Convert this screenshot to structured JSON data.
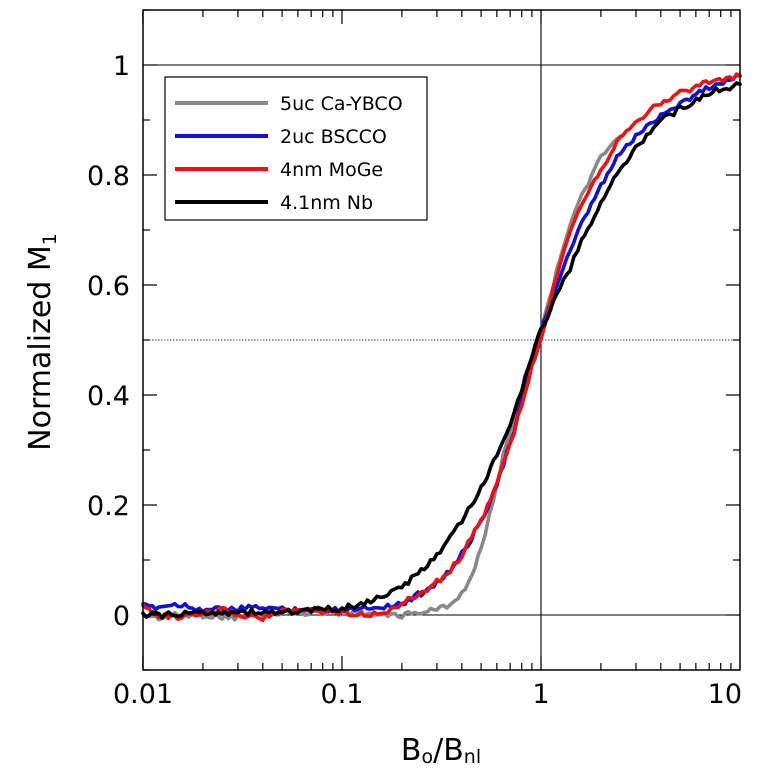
{
  "chart_data": {
    "type": "line",
    "xscale": "log",
    "xlim": [
      0.01,
      10
    ],
    "ylim": [
      -0.1,
      1.1
    ],
    "xticks": [
      {
        "value": 0.01,
        "label": "0.01"
      },
      {
        "value": 0.1,
        "label": "0.1"
      },
      {
        "value": 1,
        "label": "1"
      },
      {
        "value": 10,
        "label": "10"
      }
    ],
    "yticks": [
      {
        "value": 0,
        "label": "0"
      },
      {
        "value": 0.2,
        "label": "0.2"
      },
      {
        "value": 0.4,
        "label": "0.4"
      },
      {
        "value": 0.6,
        "label": "0.6"
      },
      {
        "value": 0.8,
        "label": "0.8"
      },
      {
        "value": 1,
        "label": "1"
      }
    ],
    "xlabel": {
      "main": "B",
      "sub1": "o",
      "mid": "/B",
      "sub2": "nl"
    },
    "ylabel": {
      "main": "Normalized M",
      "sub": "1"
    },
    "reference_lines": [
      {
        "axis": "y",
        "value": 0,
        "style": "solid"
      },
      {
        "axis": "y",
        "value": 1,
        "style": "solid"
      },
      {
        "axis": "y",
        "value": 0.5,
        "style": "dotted"
      },
      {
        "axis": "x",
        "value": 1,
        "style": "solid"
      }
    ],
    "legend_position": "top-left",
    "series": [
      {
        "name": "5uc Ca-YBCO",
        "color": "#888888",
        "points": [
          [
            0.01,
            0.0
          ],
          [
            0.012,
            -0.005
          ],
          [
            0.015,
            0.0
          ],
          [
            0.02,
            0.0
          ],
          [
            0.03,
            -0.005
          ],
          [
            0.05,
            0.005
          ],
          [
            0.07,
            0.005
          ],
          [
            0.1,
            0.01
          ],
          [
            0.15,
            0.0
          ],
          [
            0.2,
            0.0
          ],
          [
            0.25,
            0.005
          ],
          [
            0.3,
            0.01
          ],
          [
            0.35,
            0.02
          ],
          [
            0.4,
            0.04
          ],
          [
            0.45,
            0.07
          ],
          [
            0.5,
            0.12
          ],
          [
            0.55,
            0.18
          ],
          [
            0.6,
            0.24
          ],
          [
            0.7,
            0.34
          ],
          [
            0.8,
            0.41
          ],
          [
            0.9,
            0.47
          ],
          [
            1.0,
            0.52
          ],
          [
            1.1,
            0.57
          ],
          [
            1.2,
            0.63
          ],
          [
            1.4,
            0.71
          ],
          [
            1.6,
            0.76
          ],
          [
            1.8,
            0.8
          ],
          [
            2.0,
            0.83
          ],
          [
            2.2,
            0.85
          ],
          [
            2.5,
            0.87
          ]
        ]
      },
      {
        "name": "2uc BSCCO",
        "color": "#1010dd",
        "points": [
          [
            0.01,
            0.015
          ],
          [
            0.012,
            0.015
          ],
          [
            0.015,
            0.02
          ],
          [
            0.02,
            0.01
          ],
          [
            0.03,
            0.01
          ],
          [
            0.04,
            0.015
          ],
          [
            0.05,
            0.01
          ],
          [
            0.07,
            0.01
          ],
          [
            0.1,
            0.01
          ],
          [
            0.15,
            0.015
          ],
          [
            0.2,
            0.02
          ],
          [
            0.25,
            0.04
          ],
          [
            0.3,
            0.06
          ],
          [
            0.35,
            0.08
          ],
          [
            0.4,
            0.11
          ],
          [
            0.5,
            0.17
          ],
          [
            0.6,
            0.24
          ],
          [
            0.7,
            0.31
          ],
          [
            0.8,
            0.39
          ],
          [
            0.9,
            0.46
          ],
          [
            1.0,
            0.52
          ],
          [
            1.2,
            0.6
          ],
          [
            1.4,
            0.66
          ],
          [
            1.6,
            0.71
          ],
          [
            2.0,
            0.78
          ],
          [
            2.5,
            0.84
          ],
          [
            3.0,
            0.87
          ],
          [
            4.0,
            0.91
          ],
          [
            5.0,
            0.93
          ],
          [
            7.0,
            0.96
          ],
          [
            10.0,
            0.98
          ]
        ]
      },
      {
        "name": "4nm MoGe",
        "color": "#ee1111",
        "points": [
          [
            0.01,
            0.015
          ],
          [
            0.012,
            0.0
          ],
          [
            0.015,
            -0.005
          ],
          [
            0.02,
            0.0
          ],
          [
            0.025,
            0.01
          ],
          [
            0.03,
            0.0
          ],
          [
            0.04,
            -0.005
          ],
          [
            0.05,
            0.005
          ],
          [
            0.07,
            0.01
          ],
          [
            0.1,
            0.005
          ],
          [
            0.15,
            0.0
          ],
          [
            0.2,
            0.02
          ],
          [
            0.25,
            0.04
          ],
          [
            0.3,
            0.06
          ],
          [
            0.35,
            0.08
          ],
          [
            0.4,
            0.11
          ],
          [
            0.5,
            0.17
          ],
          [
            0.6,
            0.24
          ],
          [
            0.7,
            0.31
          ],
          [
            0.8,
            0.38
          ],
          [
            0.9,
            0.45
          ],
          [
            1.0,
            0.5
          ],
          [
            1.1,
            0.56
          ],
          [
            1.2,
            0.62
          ],
          [
            1.4,
            0.7
          ],
          [
            1.6,
            0.75
          ],
          [
            2.0,
            0.81
          ],
          [
            2.5,
            0.87
          ],
          [
            3.0,
            0.9
          ],
          [
            4.0,
            0.93
          ],
          [
            5.0,
            0.95
          ],
          [
            7.0,
            0.97
          ],
          [
            10.0,
            0.98
          ]
        ]
      },
      {
        "name": "4.1nm Nb",
        "color": "#000000",
        "points": [
          [
            0.01,
            0.0
          ],
          [
            0.015,
            0.0
          ],
          [
            0.02,
            0.005
          ],
          [
            0.03,
            0.005
          ],
          [
            0.05,
            0.005
          ],
          [
            0.07,
            0.008
          ],
          [
            0.1,
            0.012
          ],
          [
            0.12,
            0.018
          ],
          [
            0.15,
            0.03
          ],
          [
            0.2,
            0.05
          ],
          [
            0.25,
            0.08
          ],
          [
            0.3,
            0.11
          ],
          [
            0.35,
            0.14
          ],
          [
            0.4,
            0.17
          ],
          [
            0.5,
            0.23
          ],
          [
            0.6,
            0.29
          ],
          [
            0.7,
            0.35
          ],
          [
            0.8,
            0.41
          ],
          [
            0.9,
            0.47
          ],
          [
            1.0,
            0.52
          ],
          [
            1.2,
            0.58
          ],
          [
            1.4,
            0.63
          ],
          [
            1.6,
            0.68
          ],
          [
            2.0,
            0.75
          ],
          [
            2.5,
            0.81
          ],
          [
            3.0,
            0.85
          ],
          [
            4.0,
            0.9
          ],
          [
            5.0,
            0.92
          ],
          [
            7.0,
            0.95
          ],
          [
            10.0,
            0.965
          ]
        ]
      }
    ]
  }
}
